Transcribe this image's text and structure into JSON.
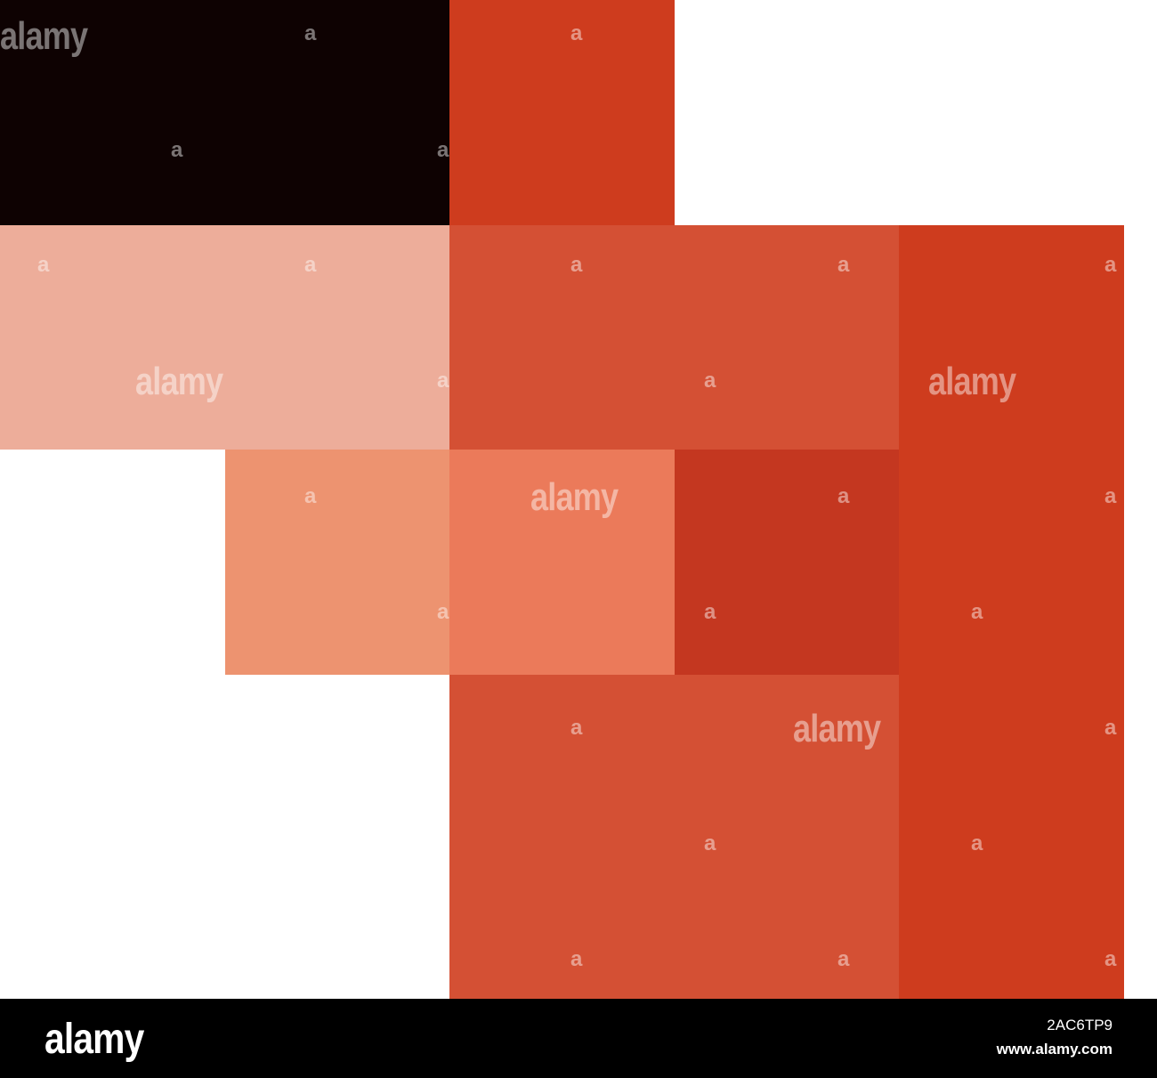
{
  "colors": {
    "black": "#0e0202",
    "red_orange": "#ce3c1e",
    "peach": "#edad9a",
    "coral": "#d45034",
    "salmon": "#ed9370",
    "orange_light": "#eb7a5a",
    "crimson": "#c43720",
    "footer_bg": "#000000"
  },
  "watermark": {
    "logo_text": "alamy",
    "small_mark": "a"
  },
  "footer": {
    "logo": "alamy",
    "image_id": "2AC6TP9",
    "url": "www.alamy.com"
  }
}
